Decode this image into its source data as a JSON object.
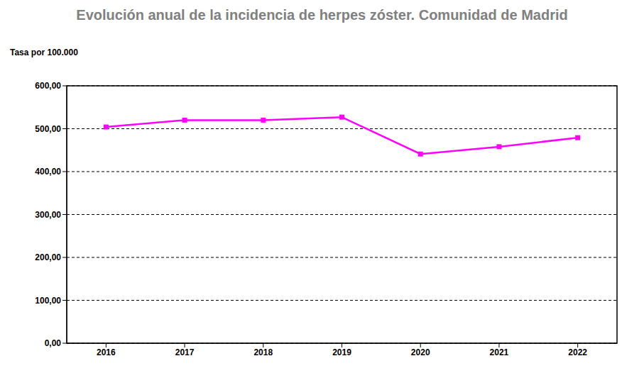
{
  "chart_data": {
    "type": "line",
    "title": "Evolución anual de la incidencia de herpes zóster. Comunidad de Madrid",
    "y_label": "Tasa por 100.000",
    "categories": [
      "2016",
      "2017",
      "2018",
      "2019",
      "2020",
      "2021",
      "2022"
    ],
    "series": [
      {
        "name": "Tasa",
        "color": "#ff00ff",
        "marker": "square",
        "values": [
          504,
          520,
          520,
          527,
          441,
          458,
          479
        ]
      }
    ],
    "ylim": [
      0,
      600
    ],
    "yticks": [
      {
        "value": 0,
        "label": "0,00"
      },
      {
        "value": 100,
        "label": "100,00"
      },
      {
        "value": 200,
        "label": "200,00"
      },
      {
        "value": 300,
        "label": "300,00"
      },
      {
        "value": 400,
        "label": "400,00"
      },
      {
        "value": 500,
        "label": "500,00"
      },
      {
        "value": 600,
        "label": "600,00"
      }
    ],
    "grid": true
  }
}
